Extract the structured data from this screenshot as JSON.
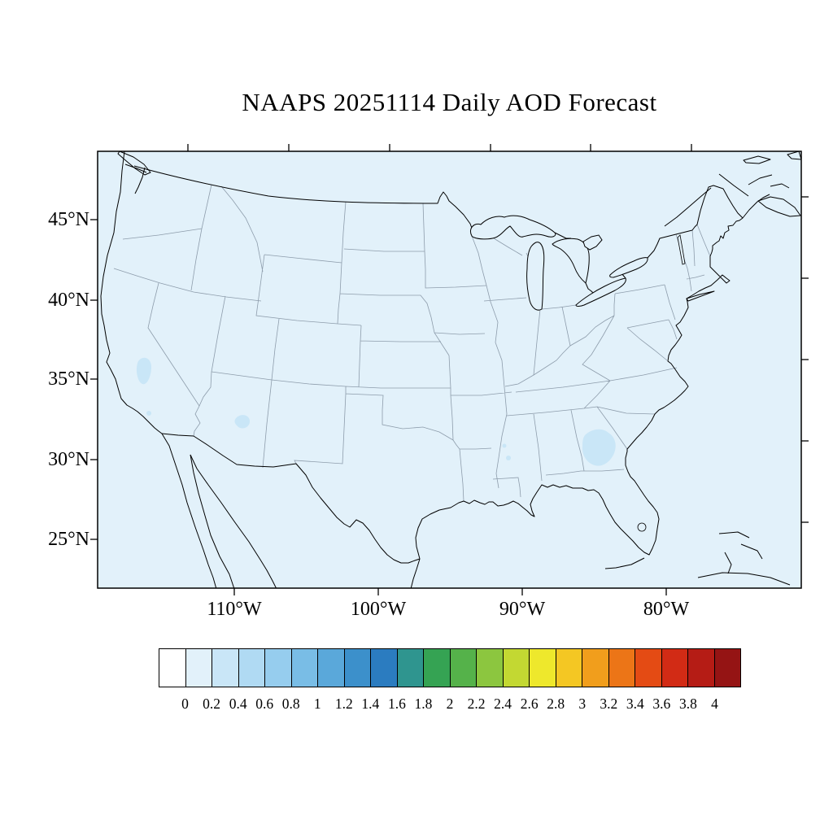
{
  "title": "NAAPS 20251114 Daily AOD Forecast",
  "axes": {
    "lat_labels": [
      "45°N",
      "40°N",
      "35°N",
      "30°N",
      "25°N"
    ],
    "lon_labels": [
      "110°W",
      "100°W",
      "90°W",
      "80°W"
    ]
  },
  "map": {
    "background_color": "#e2f1fa",
    "aod_patch_color": "#c9e6f7",
    "state_border_color": "#8d9cab",
    "coast_color": "#000000",
    "aod_patches_note": "isolated AOD 0.2-0.4 patches over central California, southern California, Arizona, Mississippi and Georgia; field elsewhere 0-0.2"
  },
  "colorbar": {
    "variable": "AOD",
    "range_min": 0,
    "range_max": 4,
    "step": 0.2,
    "tick_labels": [
      "0",
      "0.2",
      "0.4",
      "0.6",
      "0.8",
      "1",
      "1.2",
      "1.4",
      "1.6",
      "1.8",
      "2",
      "2.2",
      "2.4",
      "2.6",
      "2.8",
      "3",
      "3.2",
      "3.4",
      "3.6",
      "3.8",
      "4"
    ],
    "colors": [
      "#ffffff",
      "#e2f1fa",
      "#c9e6f7",
      "#b0daf3",
      "#96cdee",
      "#79bde6",
      "#5aa8da",
      "#3c90cb",
      "#2b7cc0",
      "#2f958f",
      "#35a353",
      "#55b24a",
      "#8cc63f",
      "#c3d832",
      "#eee82c",
      "#f4c723",
      "#f19e1c",
      "#ec7517",
      "#e44b14",
      "#d22b15",
      "#b51c15",
      "#951414"
    ]
  }
}
